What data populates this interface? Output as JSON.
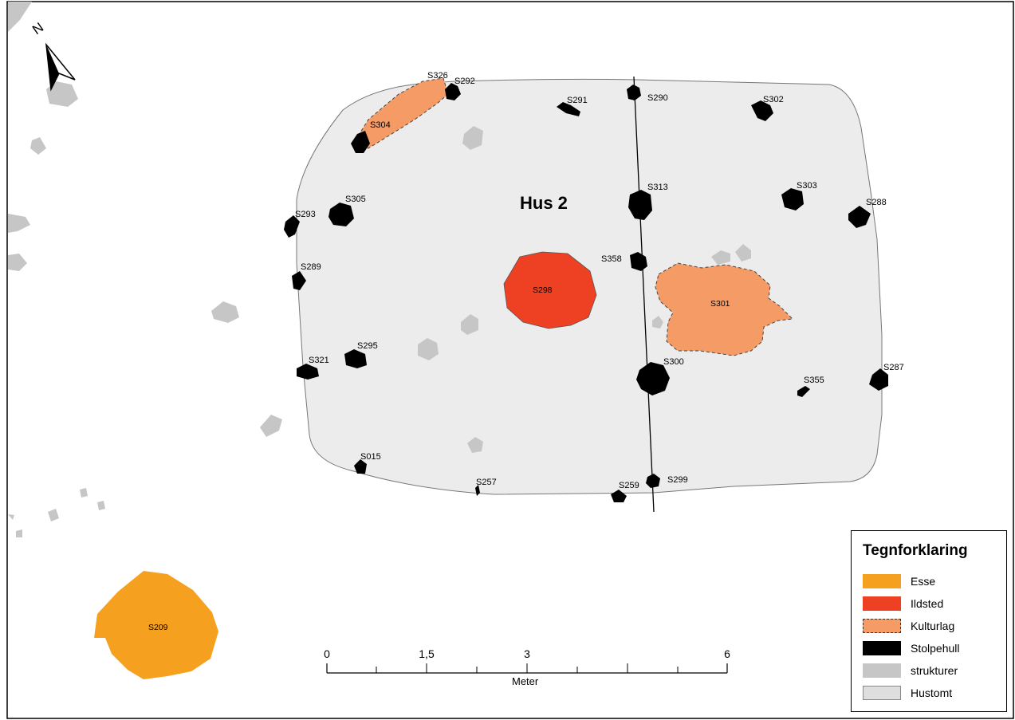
{
  "house_label": "Hus 2",
  "north": {
    "letter": "N"
  },
  "features": {
    "hearth": "S298",
    "forge": "S209",
    "layers": [
      "S301",
      "S326"
    ],
    "postholes": [
      "S292",
      "S291",
      "S290",
      "S302",
      "S304",
      "S313",
      "S303",
      "S288",
      "S305",
      "S293",
      "S358",
      "S289",
      "S300",
      "S287",
      "S355",
      "S295",
      "S321",
      "S015",
      "S257",
      "S259",
      "S299"
    ]
  },
  "scale": {
    "ticks": [
      "0",
      "1,5",
      "3",
      "6"
    ],
    "unit": "Meter"
  },
  "legend": {
    "title": "Tegnforklaring",
    "items": [
      {
        "label": "Esse",
        "color": "#f5a01e",
        "style": "solid"
      },
      {
        "label": "Ildsted",
        "color": "#ee4022",
        "style": "solid"
      },
      {
        "label": "Kulturlag",
        "color": "#f59c66",
        "style": "dashed"
      },
      {
        "label": "Stolpehull",
        "color": "#000000",
        "style": "solid"
      },
      {
        "label": "strukturer",
        "color": "#c6c6c6",
        "style": "solid"
      },
      {
        "label": "Hustomt",
        "color": "#dedede",
        "style": "outlined"
      }
    ]
  }
}
